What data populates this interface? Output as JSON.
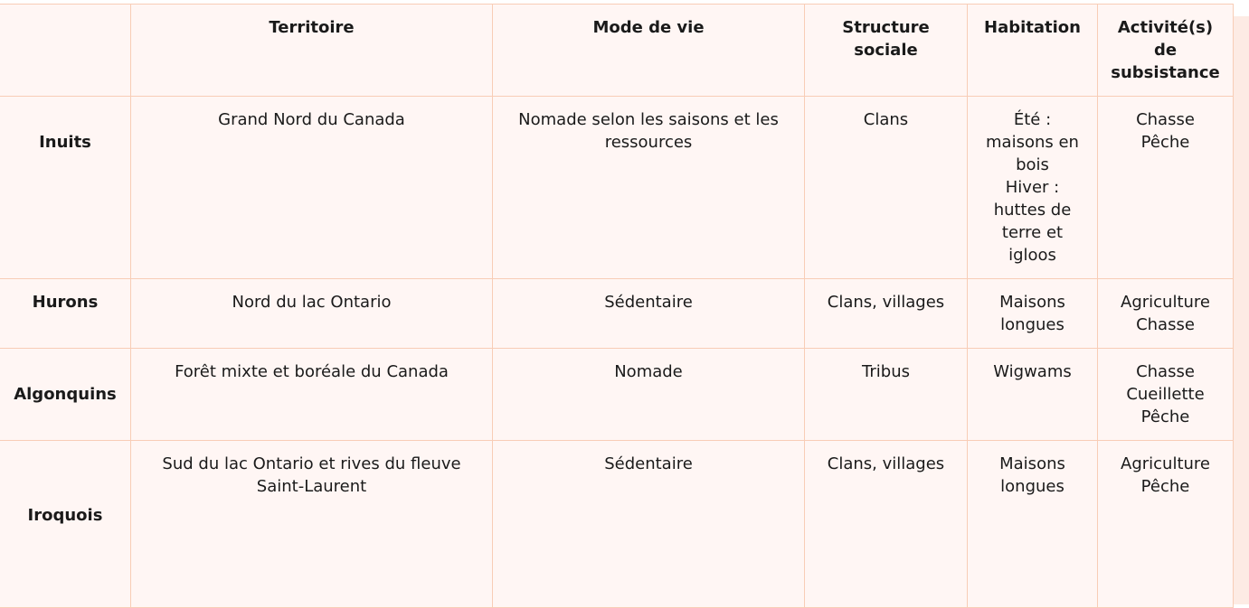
{
  "headers": [
    "",
    "Territoire",
    "Mode de vie",
    "Structure sociale",
    "Habitation",
    "Activité(s) de subsistance"
  ],
  "rows": [
    {
      "name": "Inuits",
      "territoire": "Grand Nord du Canada",
      "mode": "Nomade selon les saisons et les ressources",
      "structure": "Clans",
      "habitation": [
        "Été :",
        "maisons en bois",
        "Hiver :",
        "huttes de terre et igloos"
      ],
      "activites": [
        "Chasse",
        "Pêche"
      ]
    },
    {
      "name": "Hurons",
      "territoire": "Nord du lac Ontario",
      "mode": "Sédentaire",
      "structure": "Clans, villages",
      "habitation": [
        "Maisons longues"
      ],
      "activites": [
        "Agriculture",
        "Chasse"
      ]
    },
    {
      "name": "Algonquins",
      "territoire": "Forêt mixte et boréale du Canada",
      "mode": "Nomade",
      "structure": "Tribus",
      "habitation": [
        "Wigwams"
      ],
      "activites": [
        "Chasse",
        "Cueillette",
        "Pêche"
      ]
    },
    {
      "name": "Iroquois",
      "territoire": "Sud du lac Ontario et rives du fleuve Saint-Laurent",
      "mode": "Sédentaire",
      "structure": "Clans, villages",
      "habitation": [
        "Maisons longues"
      ],
      "activites": [
        "Agriculture",
        "Pêche"
      ]
    }
  ],
  "colors": {
    "border": "#f8cdb6",
    "cell_bg": "#fff6f4",
    "strip": "#fdebe4"
  }
}
